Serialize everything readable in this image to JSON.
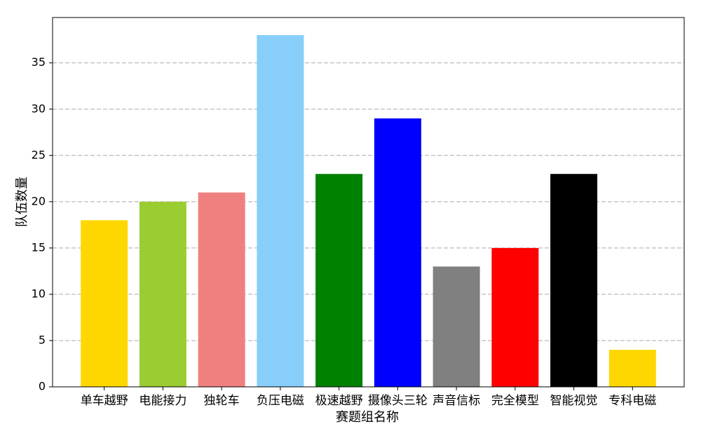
{
  "chart_data": {
    "type": "bar",
    "x_label": "赛题组名称",
    "y_label": "队伍数量",
    "categories": [
      "单车越野",
      "电能接力",
      "独轮车",
      "负压电磁",
      "极速越野",
      "摄像头三轮",
      "声音信标",
      "完全模型",
      "智能视觉",
      "专科电磁"
    ],
    "values": [
      18,
      20,
      21,
      38,
      23,
      29,
      13,
      15,
      23,
      4
    ],
    "colors": [
      "#FFD700",
      "#9ACD32",
      "#F08080",
      "#87CEFA",
      "#008000",
      "#0000FF",
      "#808080",
      "#FF0000",
      "#000000",
      "#FFD700"
    ],
    "ylim": [
      0,
      39.9
    ],
    "yticks": [
      0,
      5,
      10,
      15,
      20,
      25,
      30,
      35
    ],
    "grid": true
  }
}
